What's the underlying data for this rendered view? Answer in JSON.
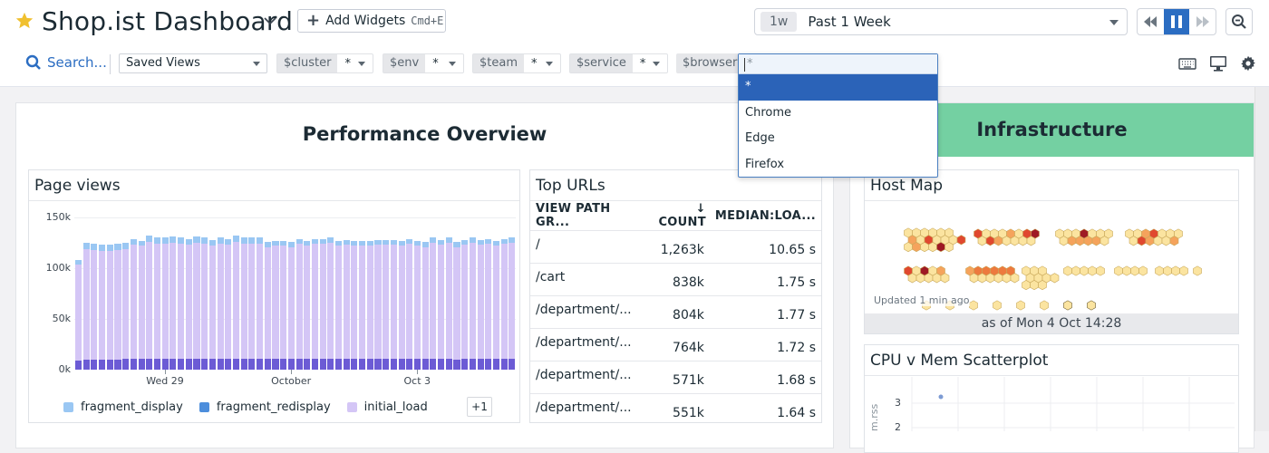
{
  "header": {
    "title": "Shop.ist Dashboard",
    "add_widgets_label": "Add Widgets",
    "add_widgets_shortcut": "Cmd+E",
    "timeframe_badge": "1w",
    "timeframe_label": "Past 1 Week",
    "icons": [
      "star-icon",
      "chevron-down-icon",
      "plus-icon",
      "caret-down-icon",
      "rewind-icon",
      "pause-icon",
      "fast-forward-icon",
      "zoom-out-icon"
    ]
  },
  "filters": {
    "search_placeholder": "Search...",
    "saved_views": "Saved Views",
    "template_vars": [
      {
        "name": "$cluster",
        "value": "*"
      },
      {
        "name": "$env",
        "value": "*"
      },
      {
        "name": "$team",
        "value": "*"
      },
      {
        "name": "$service",
        "value": "*"
      },
      {
        "name": "$browser",
        "value": "*"
      }
    ],
    "right_icons": [
      "keyboard-icon",
      "monitor-icon",
      "gear-icon"
    ]
  },
  "browser_dropdown": {
    "input_value": "*",
    "options": [
      {
        "label": "*",
        "selected": true
      },
      {
        "label": "Chrome",
        "selected": false
      },
      {
        "label": "Edge",
        "selected": false
      },
      {
        "label": "Firefox",
        "selected": false
      }
    ]
  },
  "performance": {
    "group_title": "Performance Overview",
    "page_views": {
      "title": "Page views",
      "more_legend_label": "+1"
    },
    "top_urls": {
      "title": "Top URLs",
      "columns": [
        "VIEW PATH GR...",
        "COUNT",
        "MEDIAN:LOA..."
      ],
      "sort_icon": "arrow-down-icon",
      "rows": [
        {
          "path": "/",
          "count": "1,263k",
          "median": "10.65 s"
        },
        {
          "path": "/cart",
          "count": "838k",
          "median": "1.75 s"
        },
        {
          "path": "/department/...",
          "count": "804k",
          "median": "1.77 s"
        },
        {
          "path": "/department/...",
          "count": "764k",
          "median": "1.72 s"
        },
        {
          "path": "/department/...",
          "count": "571k",
          "median": "1.68 s"
        },
        {
          "path": "/department/...",
          "count": "551k",
          "median": "1.64 s"
        }
      ]
    }
  },
  "infrastructure": {
    "group_title": "Infrastructure",
    "host_map": {
      "title": "Host Map",
      "updated": "Updated 1 min ago",
      "as_of": "as of Mon 4 Oct 14:28"
    },
    "scatterplot": {
      "title": "CPU v Mem Scatterplot",
      "y_axis_label": "m.rss",
      "y_ticks": [
        "3",
        "2"
      ]
    }
  },
  "colors": {
    "accent_blue": "#2b6dc2",
    "dropdown_selected": "#2b63b8",
    "infra_green": "#74d0a2",
    "fragment_display": "#9ac7f3",
    "fragment_redisplay": "#6c5bd5",
    "initial_load": "#d4c6f6"
  },
  "chart_data": {
    "type": "bar",
    "title": "Page views",
    "stacked": true,
    "xlabel": "",
    "ylabel": "",
    "ylim": [
      0,
      150000
    ],
    "y_ticks": [
      "0k",
      "50k",
      "100k",
      "150k"
    ],
    "x_ticks": [
      {
        "label": "Wed 29",
        "index": 11
      },
      {
        "label": "October",
        "index": 27
      },
      {
        "label": "Oct 3",
        "index": 43
      }
    ],
    "grid": true,
    "legend": [
      "fragment_display",
      "fragment_redisplay",
      "initial_load"
    ],
    "legend_overflow": "+1",
    "legend_position": "bottom",
    "categories_count": 56,
    "series": [
      {
        "name": "fragment_redisplay",
        "values": [
          9000,
          10000,
          10000,
          10000,
          10000,
          10000,
          11000,
          11000,
          11000,
          11000,
          11000,
          11000,
          11000,
          11000,
          11000,
          11000,
          11000,
          11000,
          11000,
          11000,
          11000,
          11000,
          11000,
          11000,
          11000,
          11000,
          11000,
          11000,
          11000,
          11000,
          11000,
          11000,
          11000,
          11000,
          11000,
          11000,
          11000,
          11000,
          11000,
          11000,
          11000,
          11000,
          11000,
          11000,
          11000,
          11000,
          11000,
          11000,
          10000,
          11000,
          11000,
          11000,
          11000,
          11000,
          11000,
          11000
        ]
      },
      {
        "name": "initial_load",
        "values": [
          95000,
          109000,
          108000,
          107000,
          107000,
          108000,
          108000,
          112000,
          111000,
          115000,
          113000,
          113000,
          114000,
          113000,
          112000,
          114000,
          113000,
          111000,
          113000,
          112000,
          115000,
          113000,
          113000,
          113000,
          110000,
          111000,
          111000,
          110000,
          113000,
          111000,
          113000,
          113000,
          114000,
          111000,
          112000,
          111000,
          111000,
          111000,
          112000,
          112000,
          112000,
          111000,
          113000,
          111000,
          110000,
          114000,
          112000,
          114000,
          111000,
          112000,
          114000,
          112000,
          113000,
          111000,
          113000,
          114000
        ]
      },
      {
        "name": "fragment_display",
        "values": [
          4000,
          6000,
          6000,
          6000,
          6000,
          6000,
          6000,
          6000,
          5000,
          6000,
          6000,
          6000,
          6000,
          6000,
          6000,
          6000,
          6000,
          6000,
          6000,
          6000,
          6000,
          6000,
          6000,
          6000,
          5000,
          5000,
          5000,
          5000,
          5000,
          5000,
          5000,
          5000,
          5000,
          5000,
          5000,
          5000,
          5000,
          5000,
          5000,
          5000,
          5000,
          5000,
          5000,
          5000,
          5000,
          5000,
          5000,
          5000,
          5000,
          5000,
          5000,
          5000,
          5000,
          5000,
          5000,
          5000
        ]
      }
    ]
  }
}
